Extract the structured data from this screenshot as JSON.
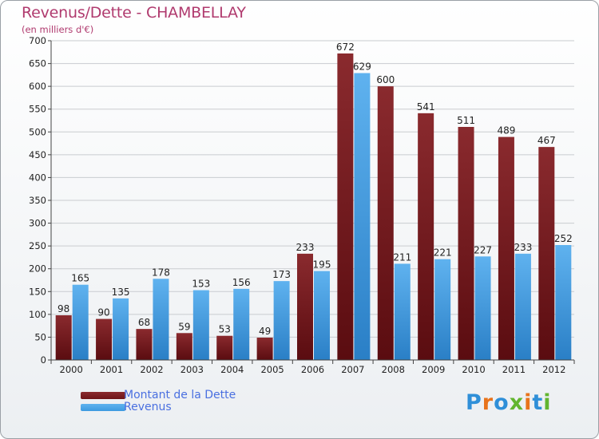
{
  "chart_data": {
    "type": "bar",
    "title": "Revenus/Dette - CHAMBELLAY",
    "subtitle": "(en milliers d'€)",
    "categories": [
      "2000",
      "2001",
      "2002",
      "2003",
      "2004",
      "2005",
      "2006",
      "2007",
      "2008",
      "2009",
      "2010",
      "2011",
      "2012"
    ],
    "series": [
      {
        "name": "Montant de la Dette",
        "color": "#6e1418",
        "values": [
          98,
          90,
          68,
          59,
          53,
          49,
          233,
          672,
          600,
          541,
          511,
          489,
          467
        ]
      },
      {
        "name": "Revenus",
        "color": "#3d9ae0",
        "values": [
          165,
          135,
          178,
          153,
          156,
          173,
          195,
          629,
          211,
          221,
          227,
          233,
          252
        ]
      }
    ],
    "ylim": [
      0,
      700
    ],
    "yticks": [
      0,
      50,
      100,
      150,
      200,
      250,
      300,
      350,
      400,
      450,
      500,
      550,
      600,
      650,
      700
    ],
    "grid": true,
    "legend": "bottom-left",
    "xlabel": "",
    "ylabel": ""
  },
  "brand": {
    "letters": [
      "P",
      "r",
      "o",
      "x",
      "i",
      "t",
      "i"
    ],
    "colors": [
      "#2f8fd8",
      "#e8731b",
      "#2f8fd8",
      "#62b52f",
      "#e8731b",
      "#2f8fd8",
      "#62b52f"
    ]
  }
}
